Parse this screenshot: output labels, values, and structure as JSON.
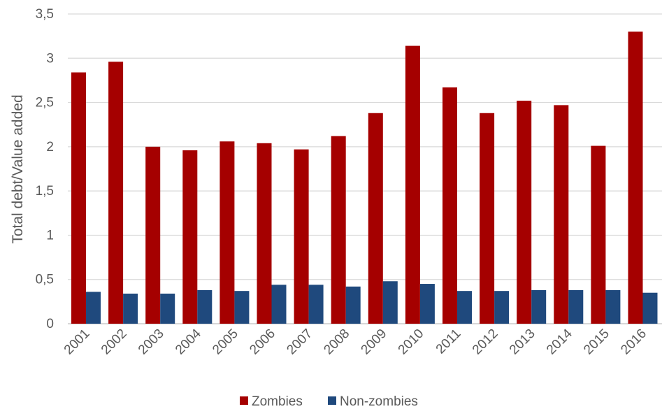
{
  "chart_data": {
    "type": "bar",
    "ylabel": "Total debt/Value added",
    "xlabel": "",
    "ylim": [
      0,
      3.5
    ],
    "yticks": [
      "0",
      "0,5",
      "1",
      "1,5",
      "2",
      "2,5",
      "3",
      "3,5"
    ],
    "grid": true,
    "legend_position": "bottom",
    "categories": [
      "2001",
      "2002",
      "2003",
      "2004",
      "2005",
      "2006",
      "2007",
      "2008",
      "2009",
      "2010",
      "2011",
      "2012",
      "2013",
      "2014",
      "2015",
      "2016"
    ],
    "series": [
      {
        "name": "Zombies",
        "color": "#A50000",
        "values": [
          2.84,
          2.96,
          2.0,
          1.96,
          2.06,
          2.04,
          1.97,
          2.12,
          2.38,
          3.14,
          2.67,
          2.38,
          2.52,
          2.47,
          2.01,
          3.3
        ]
      },
      {
        "name": "Non-zombies",
        "color": "#1F497D",
        "values": [
          0.36,
          0.34,
          0.34,
          0.38,
          0.37,
          0.44,
          0.44,
          0.42,
          0.48,
          0.45,
          0.37,
          0.37,
          0.38,
          0.38,
          0.38,
          0.35
        ]
      }
    ]
  }
}
